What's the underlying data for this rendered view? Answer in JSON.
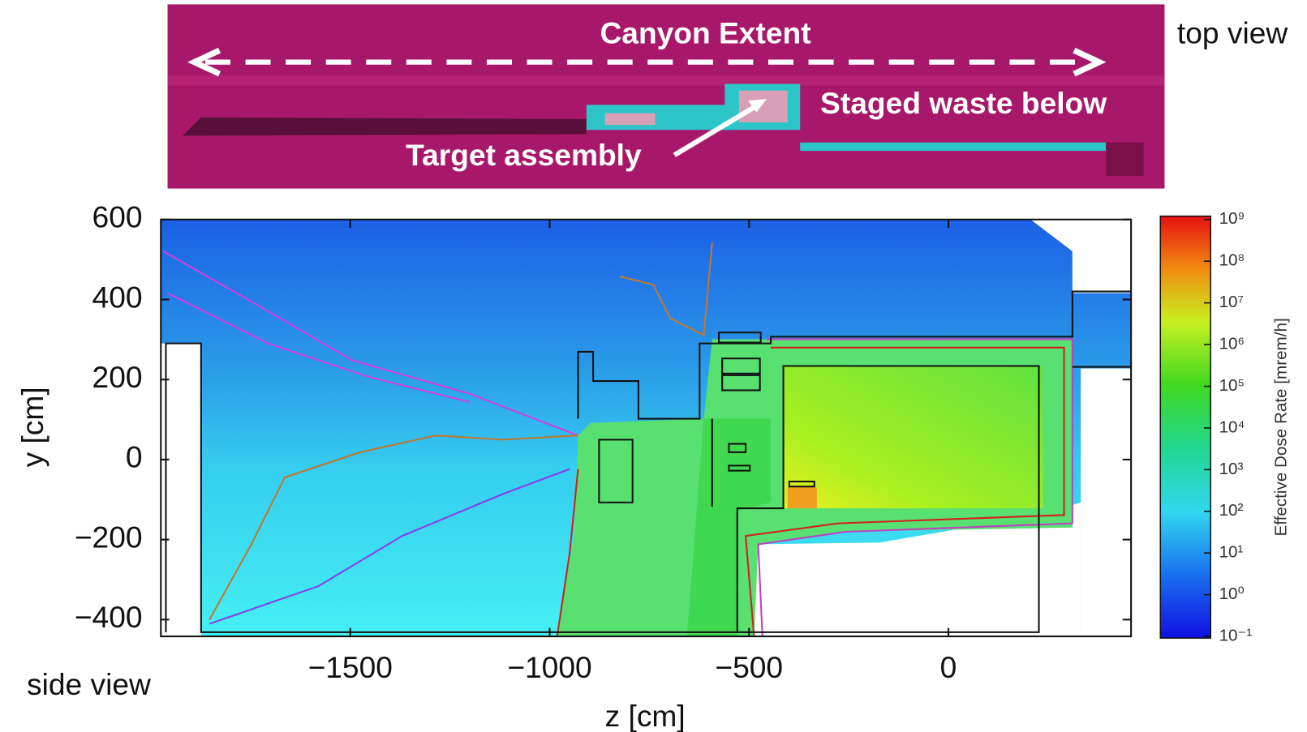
{
  "chart_data": {
    "type": "heatmap",
    "xlabel": "z [cm]",
    "ylabel": "y [cm]",
    "xlim": [
      -1975,
      458
    ],
    "ylim": [
      -442,
      600
    ],
    "xticks": [
      {
        "value": -1500,
        "label": "−1500"
      },
      {
        "value": -1000,
        "label": "−1000"
      },
      {
        "value": -500,
        "label": "−500"
      },
      0
    ],
    "yticks": [
      600,
      400,
      200,
      0,
      {
        "value": -200,
        "label": "−200"
      },
      {
        "value": -400,
        "label": "−400"
      }
    ],
    "colorbar": {
      "label": "Effective Dose Rate [mrem/h]",
      "log": true,
      "lim": [
        0.1,
        1000000000
      ],
      "ticks": [
        {
          "value": 0.1,
          "label": "10⁻¹"
        },
        {
          "value": 1,
          "label": "10⁰"
        },
        {
          "value": 10,
          "label": "10¹"
        },
        {
          "value": 100,
          "label": "10²"
        },
        {
          "value": 1000,
          "label": "10³"
        },
        {
          "value": 10000,
          "label": "10⁴"
        },
        {
          "value": 100000,
          "label": "10⁵"
        },
        {
          "value": 1000000,
          "label": "10⁶"
        },
        {
          "value": 10000000,
          "label": "10⁷"
        },
        {
          "value": 100000000,
          "label": "10⁸"
        },
        {
          "value": 1000000000,
          "label": "10⁹"
        }
      ]
    },
    "annotations": [
      "Canyon Extent",
      "Staged waste below",
      "Target assembly",
      "top view",
      "side view"
    ]
  }
}
